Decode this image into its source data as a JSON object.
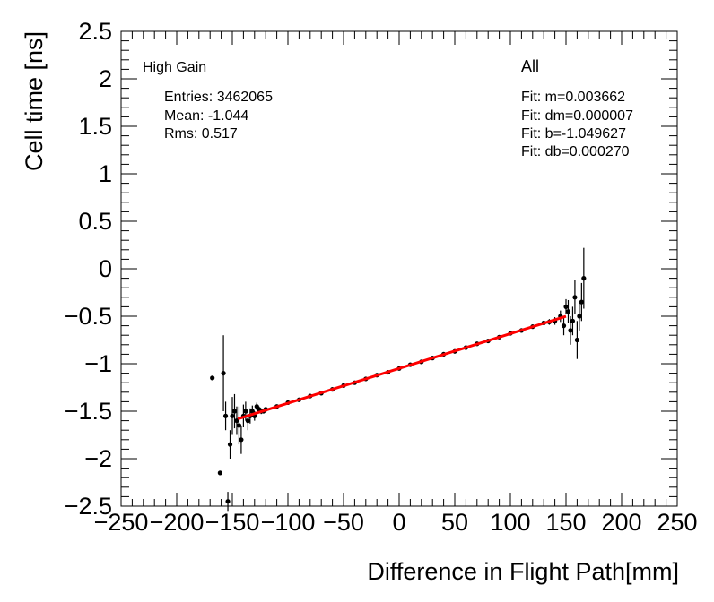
{
  "chart_data": {
    "type": "scatter",
    "title": "",
    "xlabel": "Difference in Flight Path[mm]",
    "ylabel": "Cell time [ns]",
    "xlim": [
      -250,
      250
    ],
    "ylim": [
      -2.5,
      2.5
    ],
    "x_tick_labels": [
      "−250",
      "−200",
      "−150",
      "−100",
      "−50",
      "0",
      "50",
      "100",
      "150",
      "200",
      "250"
    ],
    "y_tick_labels": [
      "−2.5",
      "−2",
      "−1.5",
      "−1",
      "−0.5",
      "0",
      "0.5",
      "1",
      "1.5",
      "2",
      "2.5"
    ],
    "annotations": {
      "gain": "High Gain",
      "selection": "All",
      "entries": "Entries: 3462065",
      "mean": "Mean: -1.044",
      "rms": "Rms: 0.517",
      "fit_m": "Fit: m=0.003662",
      "fit_dm": "Fit: dm=0.000007",
      "fit_b": "Fit: b=-1.049627",
      "fit_db": "Fit: db=0.000270"
    },
    "fit": {
      "m": 0.003662,
      "b": -1.049627,
      "x_range": [
        -145,
        150
      ],
      "color": "#ff0000"
    },
    "series": [
      {
        "name": "data",
        "color": "#000000",
        "x": [
          -168,
          -161,
          -158,
          -156,
          -154,
          -152,
          -150,
          -148,
          -146,
          -144,
          -142,
          -140,
          -138,
          -136,
          -134,
          -132,
          -130,
          -128,
          -126,
          -124,
          -122,
          -120,
          -110,
          -100,
          -90,
          -80,
          -70,
          -60,
          -50,
          -40,
          -30,
          -20,
          -10,
          0,
          10,
          20,
          30,
          40,
          50,
          60,
          70,
          80,
          90,
          100,
          110,
          120,
          130,
          135,
          140,
          145,
          148,
          150,
          152,
          154,
          156,
          158,
          160,
          162,
          164,
          166
        ],
        "y": [
          -1.15,
          -2.15,
          -1.1,
          -1.55,
          -2.45,
          -1.85,
          -1.55,
          -1.5,
          -1.6,
          -1.65,
          -1.8,
          -1.55,
          -1.5,
          -1.6,
          -1.55,
          -1.5,
          -1.55,
          -1.45,
          -1.48,
          -1.5,
          -1.5,
          -1.48,
          -1.45,
          -1.41,
          -1.38,
          -1.34,
          -1.31,
          -1.27,
          -1.23,
          -1.2,
          -1.16,
          -1.12,
          -1.09,
          -1.05,
          -1.01,
          -0.98,
          -0.94,
          -0.9,
          -0.87,
          -0.83,
          -0.79,
          -0.76,
          -0.72,
          -0.68,
          -0.65,
          -0.61,
          -0.57,
          -0.56,
          -0.55,
          -0.5,
          -0.6,
          -0.4,
          -0.45,
          -0.65,
          -0.55,
          -0.3,
          -0.75,
          -0.5,
          -0.35,
          -0.1
        ],
        "err": [
          0,
          0,
          0.4,
          0.15,
          0.1,
          0.15,
          0.2,
          0.18,
          0.15,
          0.2,
          0.15,
          0.12,
          0.1,
          0.1,
          0.08,
          0.06,
          0.05,
          0.04,
          0.03,
          0.03,
          0.02,
          0.02,
          0.01,
          0.01,
          0.01,
          0.01,
          0.01,
          0.01,
          0.01,
          0.01,
          0.01,
          0.01,
          0.01,
          0.01,
          0.01,
          0.01,
          0.01,
          0.01,
          0.01,
          0.01,
          0.01,
          0.01,
          0.01,
          0.01,
          0.01,
          0.02,
          0.02,
          0.03,
          0.04,
          0.06,
          0.1,
          0.08,
          0.12,
          0.15,
          0.15,
          0.18,
          0.2,
          0.15,
          0.2,
          0.32
        ]
      }
    ]
  }
}
